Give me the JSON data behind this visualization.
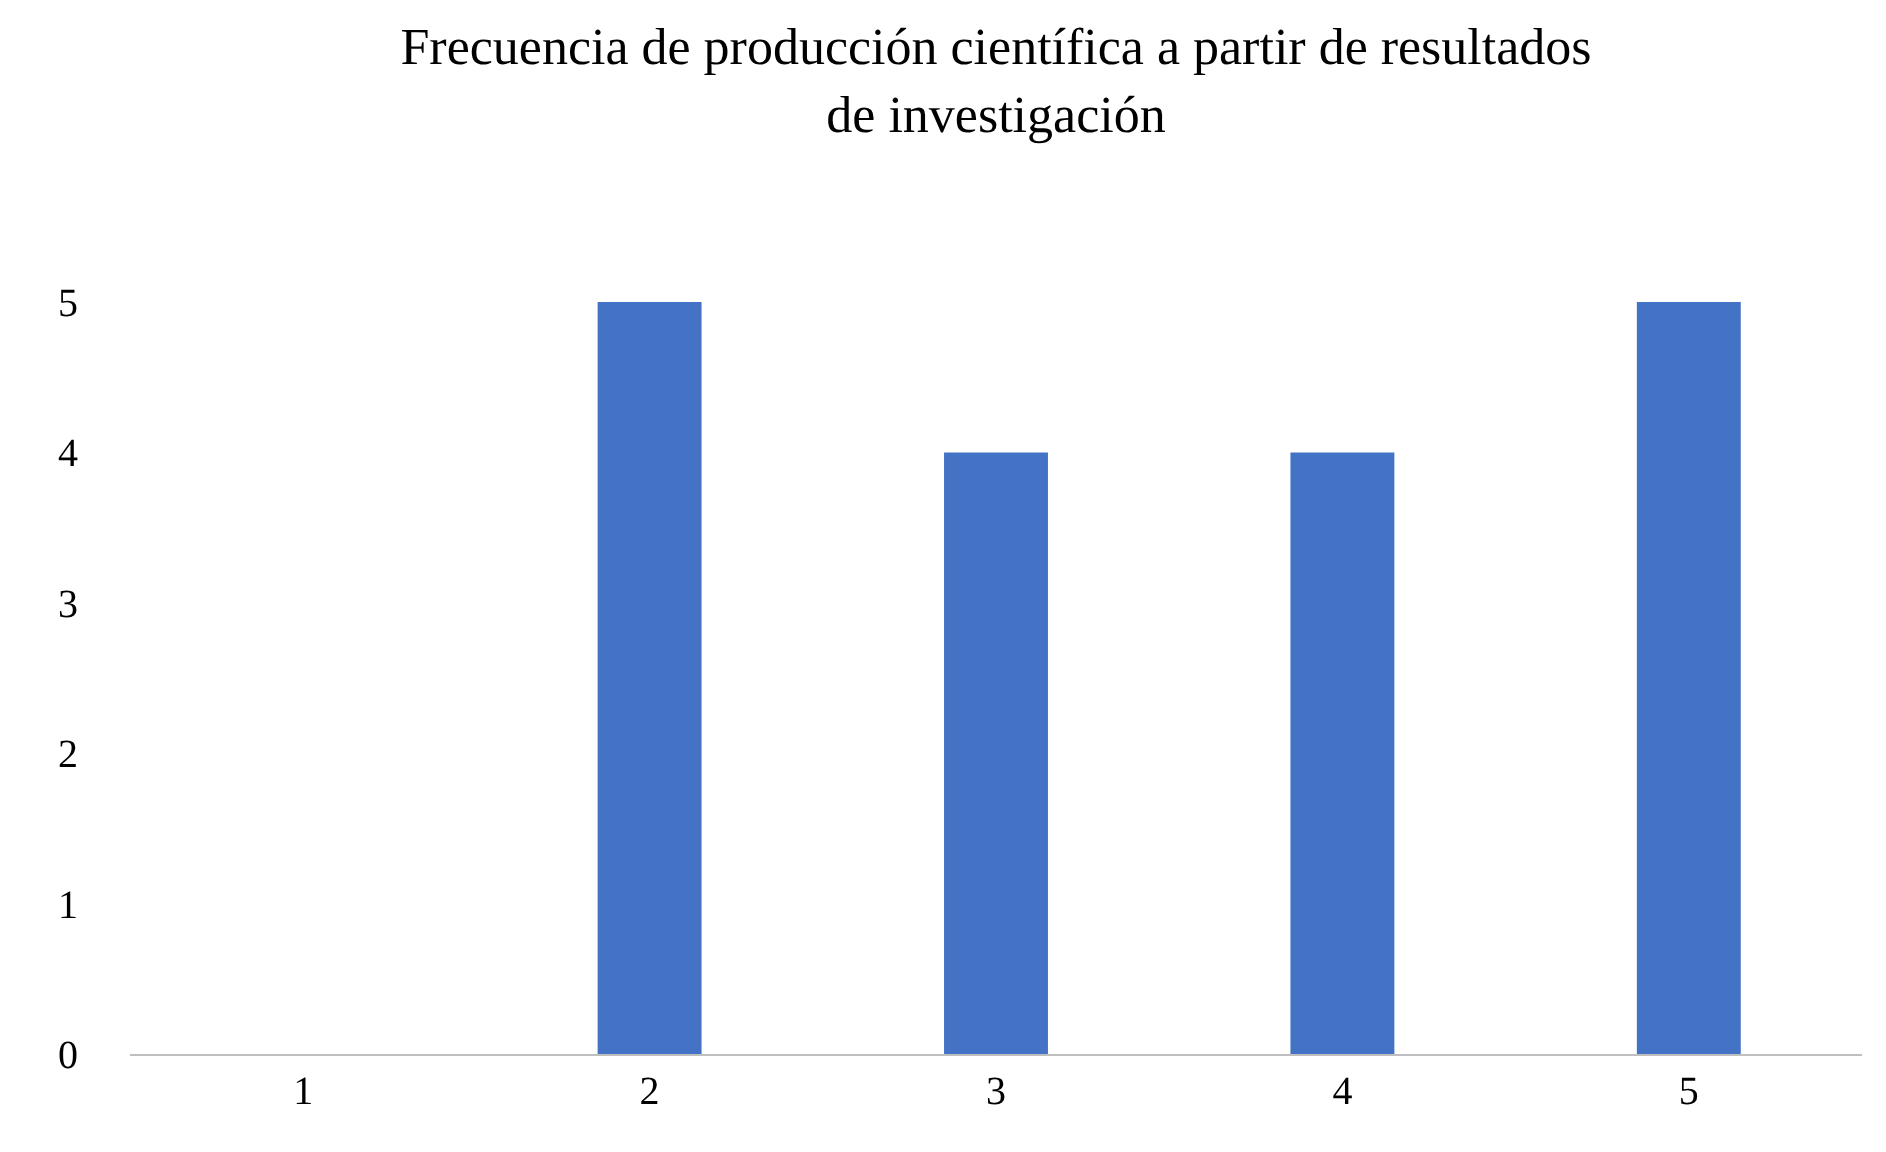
{
  "chart_data": {
    "type": "bar",
    "title": "Frecuencia de producción científica a partir de resultados\nde investigación",
    "categories": [
      "1",
      "2",
      "3",
      "4",
      "5"
    ],
    "values": [
      0,
      5,
      4,
      4,
      5
    ],
    "color": "#4472c4",
    "ylim": [
      0,
      5
    ],
    "yticks": [
      0,
      1,
      2,
      3,
      4,
      5
    ],
    "grid": false,
    "legend": false
  }
}
